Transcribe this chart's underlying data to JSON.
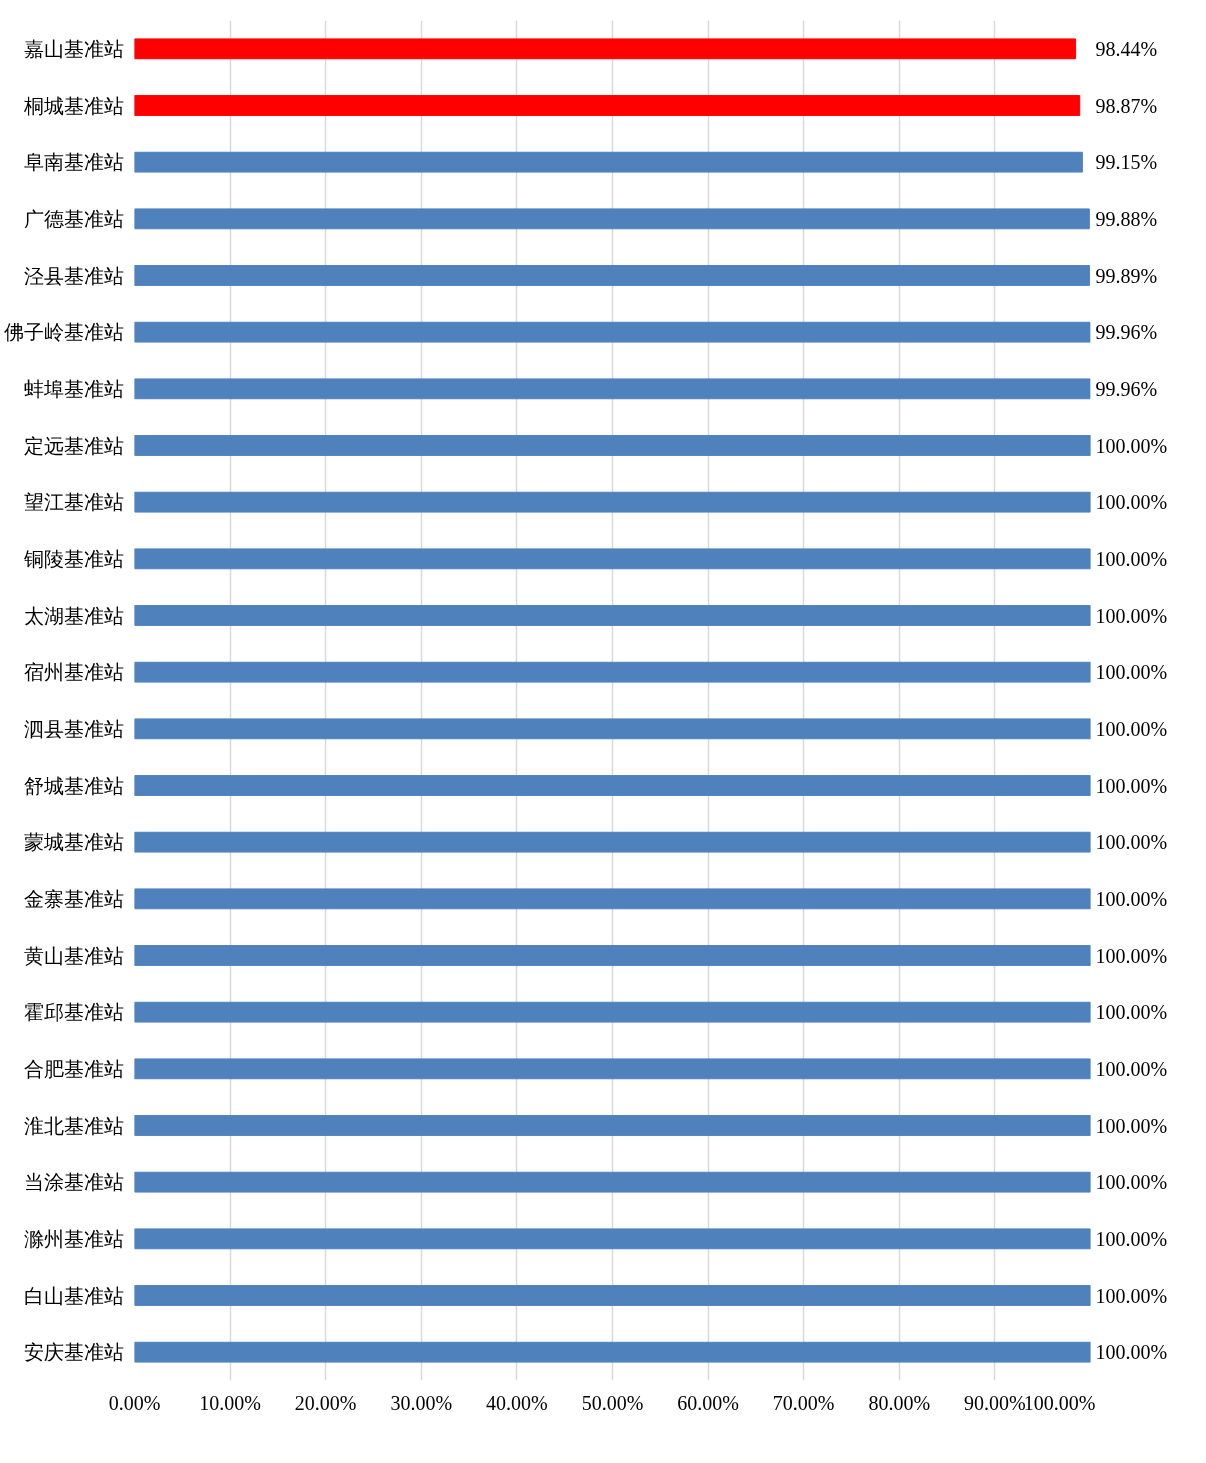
{
  "chart_data": {
    "type": "bar",
    "orientation": "horizontal",
    "categories": [
      "嘉山基准站",
      "桐城基准站",
      "阜南基准站",
      "广德基准站",
      "泾县基准站",
      "佛子岭基准站",
      "蚌埠基准站",
      "定远基准站",
      "望江基准站",
      "铜陵基准站",
      "太湖基准站",
      "宿州基准站",
      "泗县基准站",
      "舒城基准站",
      "蒙城基准站",
      "金寨基准站",
      "黄山基准站",
      "霍邱基准站",
      "合肥基准站",
      "淮北基准站",
      "当涂基准站",
      "滁州基准站",
      "白山基准站",
      "安庆基准站"
    ],
    "values": [
      98.44,
      98.87,
      99.15,
      99.88,
      99.89,
      99.96,
      99.96,
      100,
      100,
      100,
      100,
      100,
      100,
      100,
      100,
      100,
      100,
      100,
      100,
      100,
      100,
      100,
      100,
      100
    ],
    "value_labels": [
      "98.44%",
      "98.87%",
      "99.15%",
      "99.88%",
      "99.89%",
      "99.96%",
      "99.96%",
      "100.00%",
      "100.00%",
      "100.00%",
      "100.00%",
      "100.00%",
      "100.00%",
      "100.00%",
      "100.00%",
      "100.00%",
      "100.00%",
      "100.00%",
      "100.00%",
      "100.00%",
      "100.00%",
      "100.00%",
      "100.00%",
      "100.00%"
    ],
    "colors": [
      "#ff0000",
      "#ff0000",
      "#4f81bd",
      "#4f81bd",
      "#4f81bd",
      "#4f81bd",
      "#4f81bd",
      "#4f81bd",
      "#4f81bd",
      "#4f81bd",
      "#4f81bd",
      "#4f81bd",
      "#4f81bd",
      "#4f81bd",
      "#4f81bd",
      "#4f81bd",
      "#4f81bd",
      "#4f81bd",
      "#4f81bd",
      "#4f81bd",
      "#4f81bd",
      "#4f81bd",
      "#4f81bd",
      "#4f81bd"
    ],
    "xlim": [
      0,
      100
    ],
    "xticks": [
      {
        "value": 0,
        "label": "0.00%"
      },
      {
        "value": 10,
        "label": "10.00%"
      },
      {
        "value": 20,
        "label": "20.00%"
      },
      {
        "value": 30,
        "label": "30.00%"
      },
      {
        "value": 40,
        "label": "40.00%"
      },
      {
        "value": 50,
        "label": "50.00%"
      },
      {
        "value": 60,
        "label": "60.00%"
      },
      {
        "value": 70,
        "label": "70.00%"
      },
      {
        "value": 80,
        "label": "80.00%"
      },
      {
        "value": 90,
        "label": "90.00%"
      },
      {
        "value": 100,
        "label": "100.00%"
      }
    ],
    "grid": "x"
  }
}
